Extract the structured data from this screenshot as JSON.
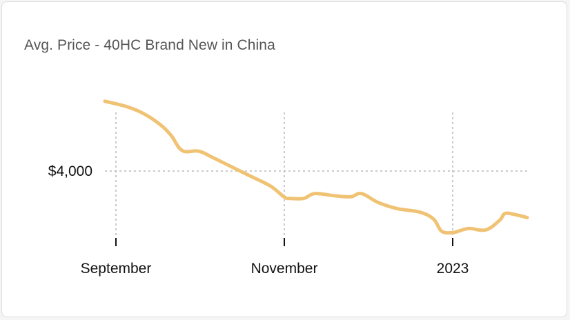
{
  "card": {
    "title": "Avg. Price - 40HC Brand New in China"
  },
  "colors": {
    "line": "#f0c374",
    "grid": "#aaaaaa",
    "axis": "#111111"
  },
  "chart_data": {
    "type": "line",
    "title": "Avg. Price - 40HC Brand New in China",
    "xlabel": "",
    "ylabel": "",
    "x_ticks": [
      {
        "label": "September",
        "date": "2022-09-01"
      },
      {
        "label": "November",
        "date": "2022-11-01"
      },
      {
        "label": "2023",
        "date": "2023-01-01"
      }
    ],
    "y_ticks": [
      {
        "label": "$4,000",
        "value": 4000
      }
    ],
    "xlim": [
      "2022-08-28",
      "2023-01-28"
    ],
    "ylim": [
      3380,
      4610
    ],
    "grid": true,
    "series": [
      {
        "x": [
          "2022-08-28",
          "2022-09-05",
          "2022-09-11",
          "2022-09-17",
          "2022-09-21",
          "2022-09-25",
          "2022-10-01",
          "2022-10-06",
          "2022-10-13",
          "2022-10-20",
          "2022-10-27",
          "2022-11-01",
          "2022-11-03",
          "2022-11-08",
          "2022-11-12",
          "2022-11-19",
          "2022-11-25",
          "2022-11-29",
          "2022-12-05",
          "2022-12-12",
          "2022-12-20",
          "2022-12-25",
          "2022-12-28",
          "2023-01-01",
          "2023-01-03",
          "2023-01-07",
          "2023-01-13",
          "2023-01-18",
          "2023-01-20",
          "2023-01-24",
          "2023-01-28"
        ],
        "y": [
          4510,
          4470,
          4420,
          4340,
          4260,
          4150,
          4145,
          4100,
          4030,
          3960,
          3890,
          3810,
          3800,
          3800,
          3835,
          3820,
          3812,
          3835,
          3770,
          3725,
          3700,
          3650,
          3560,
          3550,
          3560,
          3580,
          3570,
          3640,
          3690,
          3680,
          3660
        ]
      }
    ]
  }
}
